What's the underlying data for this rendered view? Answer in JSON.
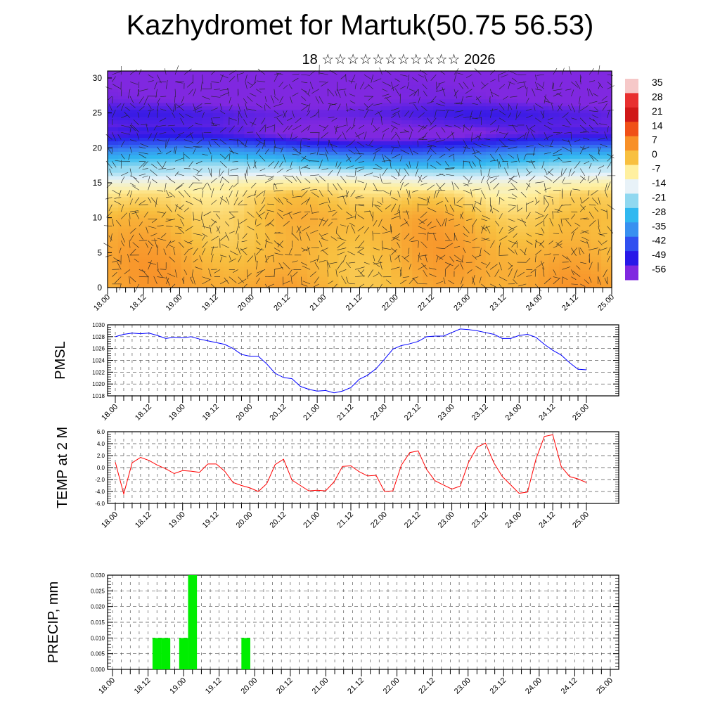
{
  "header": {
    "title": "Kazhydromet for Martuk(50.75 56.53)",
    "subtitle": "18 ☆☆☆☆☆☆☆☆☆☆☆ 2026"
  },
  "chart_data": [
    {
      "type": "heatmap",
      "name": "vertical-cross-section",
      "xlabel": "",
      "ylabel": "",
      "x_tick_labels": [
        "18.00",
        "18.12",
        "19.00",
        "19.12",
        "20.00",
        "20.12",
        "21.00",
        "21.12",
        "22.00",
        "22.12",
        "23.00",
        "23.12",
        "24.00",
        "24.12",
        "25.00"
      ],
      "y_ticks": [
        0,
        5,
        10,
        15,
        20,
        25,
        30
      ],
      "ylim": [
        0,
        31
      ],
      "colorbar_labels": [
        "35",
        "28",
        "21",
        "14",
        "7",
        "0",
        "-7",
        "-14",
        "-21",
        "-28",
        "-35",
        "-42",
        "-49",
        "-56"
      ],
      "colorbar_colors": [
        "#f6c8c8",
        "#e83030",
        "#d01818",
        "#f05018",
        "#f89028",
        "#f8c040",
        "#fff0a0",
        "#e8f2f8",
        "#90d8f0",
        "#30b8f0",
        "#3890f0",
        "#3050f0",
        "#2818e8",
        "#8028e0"
      ],
      "profile_levels_by_height": [
        {
          "h": 0,
          "v": 3
        },
        {
          "h": 5,
          "v": 2
        },
        {
          "h": 10,
          "v": 1
        },
        {
          "h": 13,
          "v": -3
        },
        {
          "h": 15,
          "v": -9
        },
        {
          "h": 17,
          "v": -20
        },
        {
          "h": 19,
          "v": -33
        },
        {
          "h": 21,
          "v": -48
        },
        {
          "h": 22,
          "v": -56
        },
        {
          "h": 25,
          "v": -52
        },
        {
          "h": 27,
          "v": -57
        },
        {
          "h": 31,
          "v": -58
        }
      ]
    },
    {
      "type": "line",
      "name": "pmsl",
      "ylabel": "PMSL",
      "ylim": [
        1018,
        1030
      ],
      "y_tick_labels": [
        "1018",
        "1020",
        "1022",
        "1024",
        "1026",
        "1028",
        "1030"
      ],
      "x_tick_labels": [
        "18.00",
        "18.12",
        "19.00",
        "19.12",
        "20.00",
        "20.12",
        "21.00",
        "21.12",
        "22.00",
        "22.12",
        "23.00",
        "23.12",
        "24.00",
        "24.12",
        "25.00"
      ],
      "color": "#0000ff",
      "values": [
        1028.0,
        1028.4,
        1028.6,
        1028.5,
        1028.6,
        1028.2,
        1027.7,
        1027.9,
        1027.8,
        1028.0,
        1027.6,
        1027.3,
        1027.0,
        1026.7,
        1026.0,
        1025.0,
        1024.7,
        1024.7,
        1023.4,
        1021.8,
        1021.1,
        1020.9,
        1019.6,
        1019.1,
        1018.8,
        1018.9,
        1018.5,
        1018.8,
        1019.4,
        1020.8,
        1021.5,
        1022.6,
        1024.2,
        1025.9,
        1026.5,
        1026.8,
        1027.2,
        1028.0,
        1028.1,
        1028.1,
        1028.7,
        1029.3,
        1029.2,
        1029.0,
        1028.7,
        1028.4,
        1027.7,
        1027.7,
        1028.2,
        1028.4,
        1027.9,
        1026.7,
        1025.7,
        1024.9,
        1023.6,
        1022.5,
        1022.4
      ]
    },
    {
      "type": "line",
      "name": "temp-2m",
      "ylabel": "TEMP at 2 M",
      "ylim": [
        -6,
        6
      ],
      "y_tick_labels": [
        "-6.0",
        "-4.0",
        "-2.0",
        "0.0",
        "2.0",
        "4.0",
        "6.0"
      ],
      "x_tick_labels": [
        "18.00",
        "18.12",
        "19.00",
        "19.12",
        "20.00",
        "20.12",
        "21.00",
        "21.12",
        "22.00",
        "22.12",
        "23.00",
        "23.12",
        "24.00",
        "24.12",
        "25.00"
      ],
      "color": "#ff0000",
      "values": [
        0.9,
        -4.4,
        0.8,
        1.7,
        1.2,
        0.4,
        -0.2,
        -1.0,
        -0.5,
        -0.6,
        -0.8,
        0.6,
        0.6,
        -0.6,
        -2.5,
        -3.0,
        -3.4,
        -4.0,
        -2.7,
        0.5,
        1.4,
        -2.1,
        -3.0,
        -3.9,
        -3.8,
        -3.9,
        -2.4,
        0.2,
        0.3,
        -0.7,
        -1.4,
        -1.3,
        -4.0,
        -3.9,
        0.4,
        2.5,
        2.8,
        -0.3,
        -2.2,
        -2.9,
        -3.6,
        -3.1,
        0.9,
        3.4,
        4.1,
        0.8,
        -1.5,
        -2.9,
        -4.3,
        -4.1,
        1.4,
        5.2,
        5.5,
        0.2,
        -1.5,
        -1.9,
        -2.5
      ]
    },
    {
      "type": "bar",
      "name": "precip",
      "ylabel": "PRECIP, mm",
      "ylim": [
        0,
        0.03
      ],
      "y_tick_labels": [
        "0.000",
        "0.005",
        "0.010",
        "0.015",
        "0.020",
        "0.025",
        "0.030"
      ],
      "x_tick_labels": [
        "18.00",
        "18.12",
        "19.00",
        "19.12",
        "20.00",
        "20.12",
        "21.00",
        "21.12",
        "22.00",
        "22.12",
        "23.00",
        "23.12",
        "24.00",
        "24.12",
        "25.00"
      ],
      "color": "#00ee00",
      "values": [
        0,
        0,
        0,
        0,
        0,
        0.01,
        0.01,
        0,
        0.01,
        0.03,
        0,
        0,
        0,
        0,
        0,
        0.01,
        0,
        0,
        0,
        0,
        0,
        0,
        0,
        0,
        0,
        0,
        0,
        0,
        0,
        0,
        0,
        0,
        0,
        0,
        0,
        0,
        0,
        0,
        0,
        0,
        0,
        0,
        0,
        0,
        0,
        0,
        0,
        0,
        0,
        0,
        0,
        0,
        0,
        0,
        0,
        0,
        0
      ]
    }
  ]
}
